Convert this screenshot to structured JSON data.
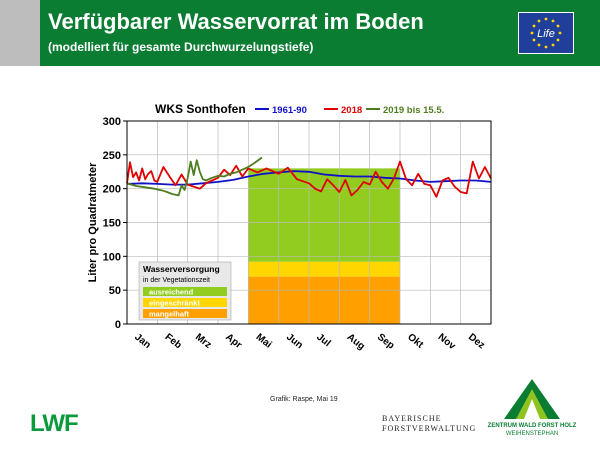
{
  "header": {
    "title": "Verfügbarer Wasservorrat im Boden",
    "subtitle": "(modelliert für gesamte Durchwurzelungstiefe)",
    "eu_logo_text": "Life"
  },
  "chart_data": {
    "type": "line",
    "title": "WKS Sonthofen",
    "xlabel": "",
    "ylabel": "Liter pro Quadratmeter",
    "ylim": [
      0,
      300
    ],
    "yticks": [
      0,
      50,
      100,
      150,
      200,
      250,
      300
    ],
    "months": [
      "Jan",
      "Feb",
      "Mrz",
      "Apr",
      "Mai",
      "Jun",
      "Jul",
      "Aug",
      "Sep",
      "Okt",
      "Nov",
      "Dez"
    ],
    "grid": true,
    "legend_position": "top",
    "series": [
      {
        "name": "1961-90",
        "color": "#1010c8",
        "x": [
          0,
          0.5,
          1,
          1.5,
          2,
          2.5,
          3,
          3.5,
          4,
          4.5,
          5,
          5.5,
          6,
          6.5,
          7,
          7.5,
          8,
          8.5,
          9,
          9.5,
          10,
          10.5,
          11,
          11.5,
          12
        ],
        "y": [
          207,
          208,
          207,
          206,
          206,
          208,
          210,
          213,
          218,
          222,
          224,
          226,
          225,
          221,
          219,
          218,
          218,
          216,
          215,
          212,
          210,
          211,
          212,
          212,
          210
        ]
      },
      {
        "name": "2018",
        "color": "#e00000",
        "x": [
          0,
          0.1,
          0.2,
          0.3,
          0.4,
          0.5,
          0.6,
          0.7,
          0.8,
          0.9,
          1.0,
          1.2,
          1.4,
          1.6,
          1.8,
          2.0,
          2.2,
          2.4,
          2.6,
          2.8,
          3.0,
          3.2,
          3.4,
          3.6,
          3.8,
          4.0,
          4.3,
          4.6,
          5.0,
          5.3,
          5.6,
          6.0,
          6.2,
          6.4,
          6.6,
          6.8,
          7.0,
          7.2,
          7.4,
          7.6,
          7.8,
          8.0,
          8.2,
          8.4,
          8.6,
          8.8,
          9.0,
          9.2,
          9.4,
          9.6,
          9.8,
          10.0,
          10.2,
          10.4,
          10.6,
          10.8,
          11.0,
          11.2,
          11.4,
          11.6,
          11.8,
          12.0
        ],
        "y": [
          208,
          239,
          217,
          224,
          212,
          230,
          214,
          222,
          226,
          212,
          210,
          232,
          218,
          205,
          221,
          206,
          203,
          200,
          208,
          212,
          216,
          228,
          220,
          234,
          218,
          230,
          224,
          230,
          222,
          231,
          214,
          208,
          200,
          196,
          214,
          205,
          195,
          213,
          190,
          198,
          210,
          206,
          225,
          210,
          200,
          215,
          240,
          214,
          205,
          222,
          207,
          205,
          188,
          212,
          216,
          203,
          195,
          193,
          240,
          215,
          232,
          215
        ]
      },
      {
        "name": "2019 bis 15.5.",
        "color": "#4e7d1e",
        "x": [
          0,
          0.3,
          0.6,
          0.9,
          1.2,
          1.5,
          1.7,
          1.8,
          1.9,
          2.0,
          2.1,
          2.2,
          2.3,
          2.4,
          2.5,
          2.6,
          2.8,
          3.0,
          3.2,
          3.4,
          3.6,
          3.8,
          4.0,
          4.2,
          4.45
        ],
        "y": [
          208,
          204,
          202,
          200,
          197,
          192,
          190,
          205,
          198,
          216,
          240,
          220,
          242,
          225,
          214,
          212,
          216,
          219,
          218,
          222,
          224,
          228,
          232,
          238,
          246
        ]
      }
    ],
    "background_bands": [
      {
        "from": 0,
        "to": 70,
        "color": "#ff9f00"
      },
      {
        "from": 70,
        "to": 92,
        "color": "#ffd600"
      },
      {
        "from": 92,
        "to": 230,
        "color": "#92cc1e"
      }
    ],
    "band_x_range": [
      4,
      9
    ],
    "veg_legend": {
      "title": "Wasserversorgung",
      "subtitle": "in der Vegetationszeit",
      "items": [
        {
          "label": "ausreichend",
          "color": "#92cc1e"
        },
        {
          "label": "eingeschränkt",
          "color": "#ffd600"
        },
        {
          "label": "mangelhaft",
          "color": "#ff9f00"
        }
      ]
    }
  },
  "footer": {
    "credit": "Grafik: Raspe, Mai 19",
    "lwf": "LWF",
    "bfv_line1": "BAYERISCHE",
    "bfv_line2": "FORSTVERWALTUNG",
    "zwfh_name1": "ZENTRUM WALD FORST HOLZ",
    "zwfh_name2": "WEIHENSTEPHAN"
  }
}
